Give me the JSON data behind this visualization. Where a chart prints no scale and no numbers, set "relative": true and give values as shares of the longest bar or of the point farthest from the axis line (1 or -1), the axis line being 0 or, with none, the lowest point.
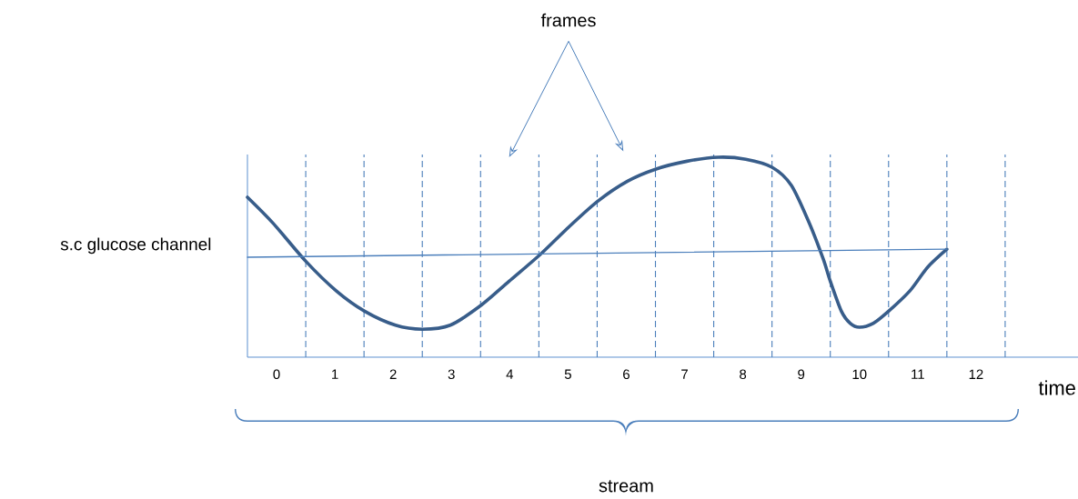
{
  "chart_data": {
    "type": "line",
    "relative": true,
    "xlabel": "time",
    "ylabel": "s.c glucose channel",
    "xlim": [
      0,
      14.25
    ],
    "xticks": [
      {
        "value": 0.5,
        "label": "0"
      },
      {
        "value": 1.5,
        "label": "1"
      },
      {
        "value": 2.5,
        "label": "2"
      },
      {
        "value": 3.5,
        "label": "3"
      },
      {
        "value": 4.5,
        "label": "4"
      },
      {
        "value": 5.5,
        "label": "5"
      },
      {
        "value": 6.5,
        "label": "6"
      },
      {
        "value": 7.5,
        "label": "7"
      },
      {
        "value": 8.5,
        "label": "8"
      },
      {
        "value": 9.5,
        "label": "9"
      },
      {
        "value": 10.5,
        "label": "10"
      },
      {
        "value": 11.5,
        "label": "11"
      },
      {
        "value": 12.5,
        "label": "12"
      }
    ],
    "series": [
      {
        "color": "#385d8a",
        "x": [
          0,
          0.44,
          1.0,
          1.53,
          2.01,
          2.54,
          3.0,
          3.48,
          4.01,
          4.49,
          5.01,
          5.51,
          6.01,
          6.52,
          7.0,
          7.54,
          8.08,
          8.55,
          9.0,
          9.33,
          9.64,
          9.88,
          10.0,
          10.19,
          10.34,
          10.5,
          10.74,
          11.0,
          11.36,
          11.67,
          12.0
        ],
        "values": [
          0.8,
          0.67,
          0.48,
          0.33,
          0.23,
          0.16,
          0.14,
          0.16,
          0.26,
          0.38,
          0.51,
          0.65,
          0.78,
          0.88,
          0.94,
          0.98,
          1.0,
          0.99,
          0.95,
          0.86,
          0.67,
          0.49,
          0.38,
          0.23,
          0.17,
          0.15,
          0.17,
          0.23,
          0.33,
          0.45,
          0.54
        ]
      },
      {
        "color": "#4a7ebb",
        "x": [
          0,
          12.0
        ],
        "values": [
          0.5,
          0.54
        ]
      }
    ],
    "ref_lines": [
      {
        "axis": "x",
        "value": 1,
        "color": "#4a7ebb",
        "line_style": "dashed"
      },
      {
        "axis": "x",
        "value": 2,
        "color": "#4a7ebb",
        "line_style": "dashed"
      },
      {
        "axis": "x",
        "value": 3,
        "color": "#4a7ebb",
        "line_style": "dashed"
      },
      {
        "axis": "x",
        "value": 4,
        "color": "#4a7ebb",
        "line_style": "dashed"
      },
      {
        "axis": "x",
        "value": 5,
        "color": "#4a7ebb",
        "line_style": "dashed"
      },
      {
        "axis": "x",
        "value": 6,
        "color": "#4a7ebb",
        "line_style": "dashed"
      },
      {
        "axis": "x",
        "value": 7,
        "color": "#4a7ebb",
        "line_style": "dashed"
      },
      {
        "axis": "x",
        "value": 8,
        "color": "#4a7ebb",
        "line_style": "dashed"
      },
      {
        "axis": "x",
        "value": 9,
        "color": "#4a7ebb",
        "line_style": "dashed"
      },
      {
        "axis": "x",
        "value": 10,
        "color": "#4a7ebb",
        "line_style": "dashed"
      },
      {
        "axis": "x",
        "value": 11,
        "color": "#4a7ebb",
        "line_style": "dashed"
      },
      {
        "axis": "x",
        "value": 12,
        "color": "#4a7ebb",
        "line_style": "dashed"
      },
      {
        "axis": "x",
        "value": 13,
        "color": "#4a7ebb",
        "line_style": "dashed"
      }
    ],
    "annotations": [
      "frames",
      "stream"
    ],
    "marker": "none",
    "line_style": "solid",
    "grid": false
  }
}
